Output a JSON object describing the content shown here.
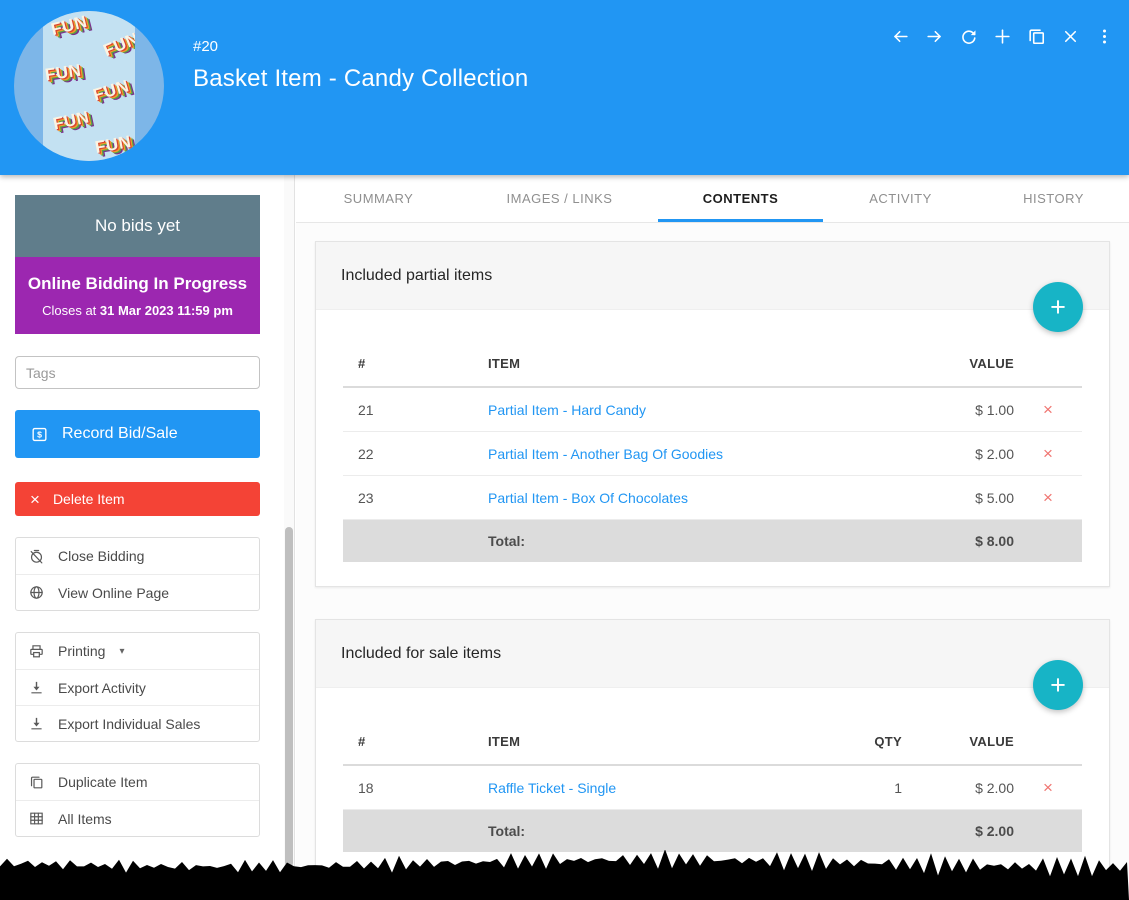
{
  "colors": {
    "header_blue": "#2196F3",
    "banner_slate": "#607D8B",
    "banner_purple": "#9C27B0",
    "button_blue": "#2196F3",
    "button_red": "#F44336",
    "fab_teal": "#17B4C6",
    "link_blue": "#2196F3",
    "delete_x_red": "#F07470"
  },
  "header": {
    "item_number": "#20",
    "title": "Basket Item - Candy Collection",
    "avatar_text": "FUN"
  },
  "icons": {
    "plus": "+",
    "delete_x": "×",
    "row_delete": "×",
    "caret_down": "▾"
  },
  "sidebar": {
    "bid_status": "No bids yet",
    "bidding_banner": {
      "title": "Online Bidding In Progress",
      "closes_prefix": "Closes at ",
      "closes_datetime": "31 Mar 2023 11:59 pm"
    },
    "tags_placeholder": "Tags",
    "record_button": "Record Bid/Sale",
    "delete_button": "Delete Item",
    "groups": [
      {
        "items": [
          {
            "label": "Close Bidding"
          },
          {
            "label": "View Online Page"
          }
        ]
      },
      {
        "items": [
          {
            "label": "Printing"
          },
          {
            "label": "Export Activity"
          },
          {
            "label": "Export Individual Sales"
          }
        ]
      },
      {
        "items": [
          {
            "label": "Duplicate Item"
          },
          {
            "label": "All Items"
          }
        ]
      }
    ]
  },
  "tabs": [
    {
      "label": "SUMMARY"
    },
    {
      "label": "IMAGES / LINKS"
    },
    {
      "label": "CONTENTS",
      "active": true
    },
    {
      "label": "ACTIVITY"
    },
    {
      "label": "HISTORY"
    }
  ],
  "cards": [
    {
      "title": "Included partial items",
      "columns": [
        "#",
        "ITEM",
        "VALUE"
      ],
      "rows": [
        {
          "num": "21",
          "item": "Partial Item - Hard Candy",
          "value": "$ 1.00"
        },
        {
          "num": "22",
          "item": "Partial Item - Another Bag Of Goodies",
          "value": "$ 2.00"
        },
        {
          "num": "23",
          "item": "Partial Item - Box Of Chocolates",
          "value": "$ 5.00"
        }
      ],
      "total_label": "Total:",
      "total_value": "$ 8.00"
    },
    {
      "title": "Included for sale items",
      "columns": [
        "#",
        "ITEM",
        "QTY",
        "VALUE"
      ],
      "rows": [
        {
          "num": "18",
          "item": "Raffle Ticket - Single",
          "qty": "1",
          "value": "$ 2.00"
        }
      ],
      "total_label": "Total:",
      "total_value": "$ 2.00"
    }
  ]
}
